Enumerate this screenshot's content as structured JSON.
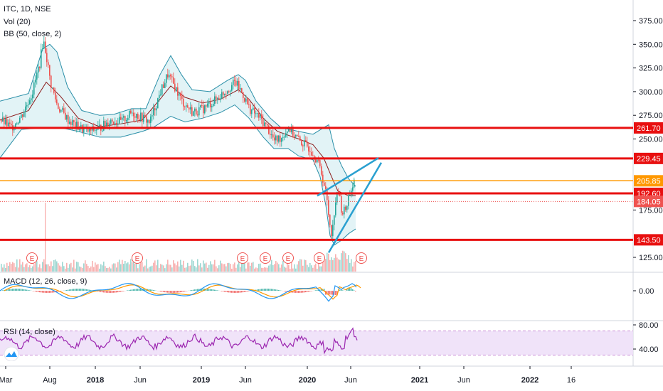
{
  "header": {
    "symbol_line": "ITC, 1D, NSE",
    "volume_label": "Vol (20)",
    "bb_label": "BB (50, close, 2)",
    "macd_label": "MACD (12, 26, close, 9)",
    "rsi_label": "RSI (14, close)"
  },
  "colors": {
    "candle_up": "#26a69a",
    "candle_down": "#ef5350",
    "bb_band": "#2a8fa8",
    "bb_fill": "#d6eef2",
    "bb_basis": "#8b1a1a",
    "support_line": "#e81010",
    "current_price_line": "#ff9800",
    "channel_line": "#2aa0d0",
    "macd_line": "#2196f3",
    "signal_line": "#ff9800",
    "rsi_line": "#9c27b0",
    "rsi_band": "#ecdcf8"
  },
  "chart_data": [
    {
      "type": "candlestick",
      "panel": "price",
      "title": "ITC, 1D, NSE",
      "x_ticks": [
        "Mar",
        "Aug",
        "2018",
        "Jun",
        "2019",
        "Jun",
        "2020",
        "Jun",
        "2021",
        "Jun",
        "2022",
        "16"
      ],
      "ylim": [
        112,
        395
      ],
      "y_ticks": [
        125.0,
        150.0,
        175.0,
        200.0,
        225.0,
        250.0,
        275.0,
        300.0,
        325.0,
        350.0,
        375.0
      ],
      "y_tick_labels": [
        "125.00",
        "150.00",
        "175.00",
        "200.00",
        "225.00",
        "250.00",
        "275.00",
        "300.00",
        "325.00",
        "350.00",
        "375.00"
      ],
      "horizontal_levels": [
        {
          "value": 261.7,
          "label": "261.70",
          "style": "support"
        },
        {
          "value": 229.45,
          "label": "229.45",
          "style": "support"
        },
        {
          "value": 205.85,
          "label": "205.85",
          "style": "current"
        },
        {
          "value": 192.6,
          "label": "192.60",
          "style": "support"
        },
        {
          "value": 184.05,
          "label": "184.05",
          "style": "dotted"
        },
        {
          "value": 143.5,
          "label": "143.50",
          "style": "support"
        }
      ],
      "price_series": {
        "name": "close",
        "points": [
          [
            0,
            270
          ],
          [
            15,
            262
          ],
          [
            30,
            275
          ],
          [
            45,
            300
          ],
          [
            55,
            330
          ],
          [
            60,
            355
          ],
          [
            64,
            340
          ],
          [
            70,
            310
          ],
          [
            80,
            285
          ],
          [
            95,
            270
          ],
          [
            110,
            262
          ],
          [
            125,
            258
          ],
          [
            140,
            262
          ],
          [
            155,
            270
          ],
          [
            170,
            268
          ],
          [
            185,
            278
          ],
          [
            200,
            272
          ],
          [
            210,
            268
          ],
          [
            225,
            300
          ],
          [
            235,
            318
          ],
          [
            245,
            305
          ],
          [
            255,
            290
          ],
          [
            270,
            278
          ],
          [
            285,
            282
          ],
          [
            300,
            290
          ],
          [
            315,
            300
          ],
          [
            330,
            310
          ],
          [
            340,
            298
          ],
          [
            350,
            282
          ],
          [
            365,
            272
          ],
          [
            375,
            262
          ],
          [
            385,
            248
          ],
          [
            395,
            252
          ],
          [
            405,
            262
          ],
          [
            420,
            248
          ],
          [
            435,
            240
          ],
          [
            445,
            228
          ],
          [
            452,
            212
          ],
          [
            458,
            190
          ],
          [
            462,
            165
          ],
          [
            466,
            148
          ],
          [
            470,
            182
          ],
          [
            475,
            195
          ],
          [
            480,
            172
          ],
          [
            485,
            176
          ],
          [
            490,
            192
          ],
          [
            495,
            200
          ],
          [
            498,
            206
          ]
        ]
      },
      "bollinger": {
        "upper": [
          [
            0,
            290
          ],
          [
            40,
            298
          ],
          [
            60,
            345
          ],
          [
            70,
            350
          ],
          [
            80,
            342
          ],
          [
            95,
            305
          ],
          [
            115,
            280
          ],
          [
            140,
            275
          ],
          [
            160,
            276
          ],
          [
            185,
            282
          ],
          [
            205,
            282
          ],
          [
            225,
            318
          ],
          [
            240,
            338
          ],
          [
            255,
            318
          ],
          [
            270,
            302
          ],
          [
            295,
            300
          ],
          [
            320,
            312
          ],
          [
            335,
            318
          ],
          [
            345,
            312
          ],
          [
            360,
            290
          ],
          [
            380,
            272
          ],
          [
            395,
            262
          ],
          [
            420,
            258
          ],
          [
            440,
            255
          ],
          [
            455,
            262
          ],
          [
            462,
            265
          ],
          [
            470,
            240
          ],
          [
            480,
            222
          ],
          [
            490,
            208
          ],
          [
            500,
            200
          ]
        ],
        "basis": [
          [
            0,
            270
          ],
          [
            40,
            280
          ],
          [
            65,
            310
          ],
          [
            85,
            295
          ],
          [
            110,
            272
          ],
          [
            140,
            263
          ],
          [
            170,
            266
          ],
          [
            200,
            270
          ],
          [
            225,
            292
          ],
          [
            240,
            306
          ],
          [
            260,
            294
          ],
          [
            285,
            288
          ],
          [
            310,
            292
          ],
          [
            335,
            302
          ],
          [
            350,
            292
          ],
          [
            370,
            272
          ],
          [
            390,
            258
          ],
          [
            420,
            250
          ],
          [
            440,
            244
          ],
          [
            455,
            230
          ],
          [
            465,
            212
          ],
          [
            475,
            195
          ],
          [
            490,
            190
          ],
          [
            500,
            190
          ]
        ],
        "lower": [
          [
            0,
            230
          ],
          [
            30,
            260
          ],
          [
            60,
            262
          ],
          [
            85,
            262
          ],
          [
            110,
            258
          ],
          [
            140,
            252
          ],
          [
            170,
            252
          ],
          [
            200,
            258
          ],
          [
            215,
            262
          ],
          [
            240,
            274
          ],
          [
            260,
            268
          ],
          [
            285,
            272
          ],
          [
            310,
            278
          ],
          [
            330,
            286
          ],
          [
            350,
            272
          ],
          [
            370,
            252
          ],
          [
            385,
            240
          ],
          [
            405,
            240
          ],
          [
            420,
            232
          ],
          [
            440,
            228
          ],
          [
            450,
            210
          ],
          [
            458,
            180
          ],
          [
            464,
            148
          ],
          [
            470,
            138
          ],
          [
            480,
            143
          ],
          [
            490,
            150
          ],
          [
            500,
            155
          ]
        ]
      },
      "trendlines": [
        {
          "from": [
            446,
            190
          ],
          "to": [
            532,
            230
          ]
        },
        {
          "from": [
            462,
            130
          ],
          "to": [
            536,
            225
          ]
        }
      ]
    },
    {
      "type": "bar",
      "panel": "volume",
      "title": "Vol (20)",
      "earnings_markers": [
        "E",
        "E",
        "E",
        "E",
        "E",
        "E",
        "E"
      ]
    },
    {
      "type": "line",
      "panel": "macd",
      "title": "MACD (12, 26, close, 9)",
      "y_ticks": [
        0.0
      ],
      "y_tick_labels": [
        "0.00"
      ]
    },
    {
      "type": "line",
      "panel": "rsi",
      "title": "RSI (14, close)",
      "ylim": [
        20,
        90
      ],
      "y_ticks": [
        80.0,
        40.0
      ],
      "y_tick_labels": [
        "80.00",
        "40.00"
      ],
      "band": [
        30,
        70
      ]
    }
  ]
}
